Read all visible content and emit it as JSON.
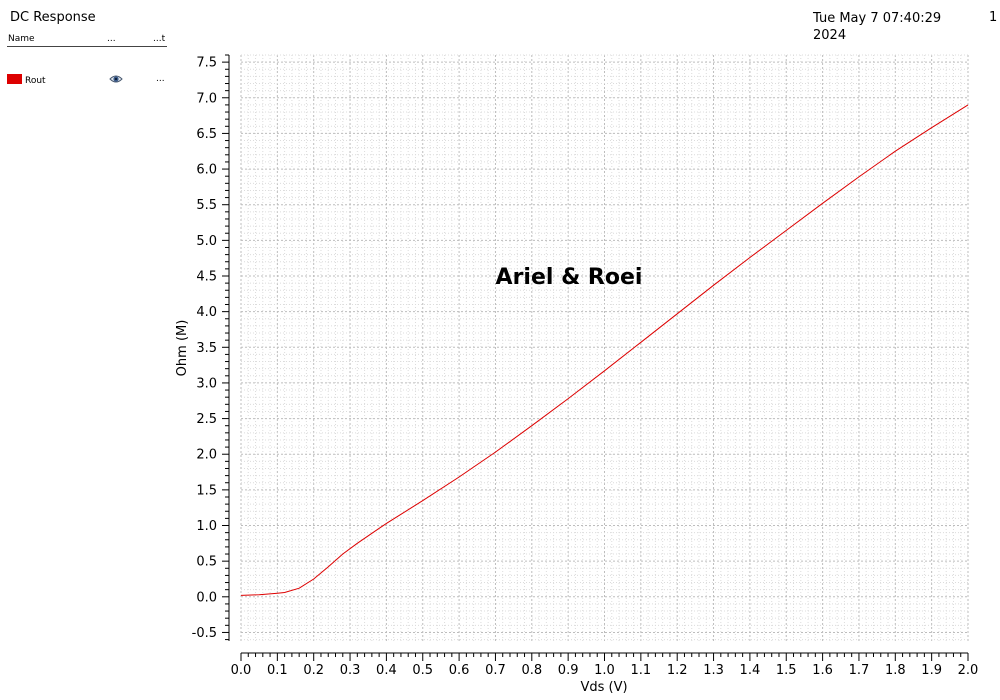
{
  "header": {
    "title": "DC Response",
    "date": "Tue May 7 07:40:29 2024",
    "page_number": "1"
  },
  "legend": {
    "columns": [
      "Name",
      "...",
      "...t"
    ],
    "items": [
      {
        "name": "Rout",
        "color": "#dd0000",
        "visibility_icon": "eye-icon",
        "more": "..."
      }
    ]
  },
  "chart_data": {
    "type": "line",
    "title": "",
    "xlabel": "Vds (V)",
    "ylabel": "Ohm (M)",
    "xlim": [
      0.0,
      2.0
    ],
    "ylim": [
      -0.62,
      7.6
    ],
    "grid": true,
    "x_ticks": [
      "0.0",
      "0.1",
      "0.2",
      "0.3",
      "0.4",
      "0.5",
      "0.6",
      "0.7",
      "0.8",
      "0.9",
      "1.0",
      "1.1",
      "1.2",
      "1.3",
      "1.4",
      "1.5",
      "1.6",
      "1.7",
      "1.8",
      "1.9",
      "2.0"
    ],
    "y_ticks": [
      "7.5",
      "7.0",
      "6.5",
      "6.0",
      "5.5",
      "5.0",
      "4.5",
      "4.0",
      "3.5",
      "3.0",
      "2.5",
      "2.0",
      "1.5",
      "1.0",
      "0.5",
      "0.0",
      "-0.5"
    ],
    "annotation": "Ariel & Roei",
    "series": [
      {
        "name": "Rout",
        "color": "#dd0000",
        "x": [
          0.0,
          0.05,
          0.1,
          0.12,
          0.16,
          0.2,
          0.24,
          0.28,
          0.32,
          0.4,
          0.5,
          0.6,
          0.7,
          0.8,
          0.9,
          1.0,
          1.1,
          1.2,
          1.3,
          1.4,
          1.5,
          1.6,
          1.7,
          1.8,
          1.9,
          2.0
        ],
        "y": [
          0.02,
          0.03,
          0.05,
          0.06,
          0.12,
          0.25,
          0.42,
          0.6,
          0.75,
          1.03,
          1.35,
          1.68,
          2.03,
          2.4,
          2.78,
          3.17,
          3.57,
          3.97,
          4.37,
          4.76,
          5.14,
          5.52,
          5.89,
          6.25,
          6.58,
          6.9
        ]
      }
    ]
  }
}
